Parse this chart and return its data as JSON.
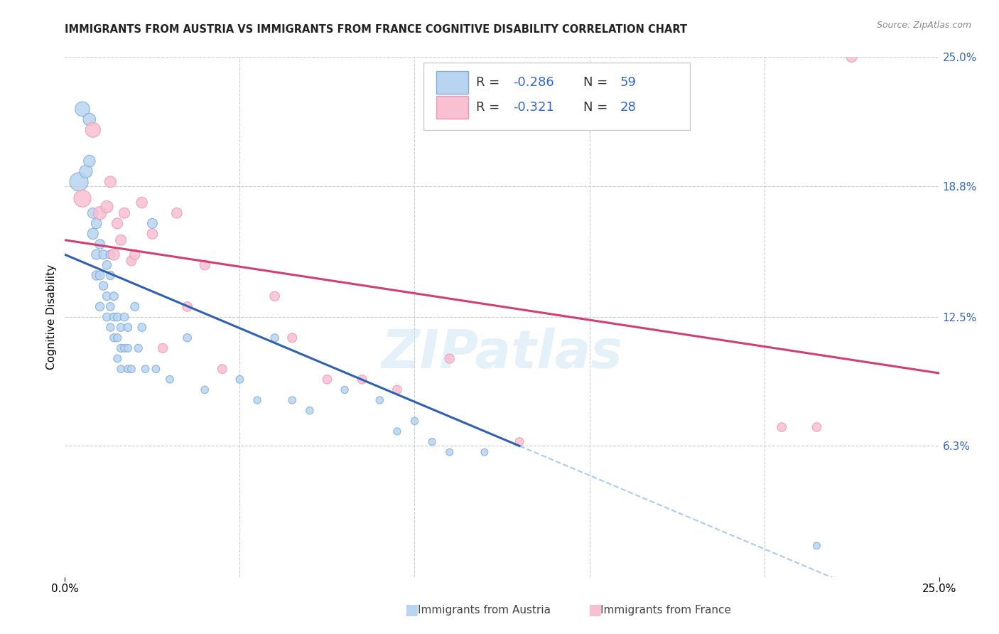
{
  "title": "IMMIGRANTS FROM AUSTRIA VS IMMIGRANTS FROM FRANCE COGNITIVE DISABILITY CORRELATION CHART",
  "source": "Source: ZipAtlas.com",
  "ylabel": "Cognitive Disability",
  "xlim": [
    0.0,
    0.25
  ],
  "ylim": [
    0.0,
    0.25
  ],
  "legend_r_austria": "-0.286",
  "legend_n_austria": "59",
  "legend_r_france": "-0.321",
  "legend_n_france": "28",
  "austria_fill": "#b8d4f0",
  "austria_edge": "#80aad8",
  "france_fill": "#f8c0d0",
  "france_edge": "#e898b8",
  "austria_line_color": "#3060b0",
  "france_line_color": "#d04070",
  "dashed_color": "#aaccee",
  "austria_reg": [
    0.0,
    0.155,
    0.13,
    0.063
  ],
  "france_reg": [
    0.0,
    0.162,
    0.25,
    0.098
  ],
  "austria_x": [
    0.004,
    0.005,
    0.006,
    0.007,
    0.007,
    0.008,
    0.008,
    0.009,
    0.009,
    0.009,
    0.01,
    0.01,
    0.01,
    0.011,
    0.011,
    0.012,
    0.012,
    0.012,
    0.013,
    0.013,
    0.013,
    0.013,
    0.014,
    0.014,
    0.014,
    0.015,
    0.015,
    0.015,
    0.016,
    0.016,
    0.016,
    0.017,
    0.017,
    0.018,
    0.018,
    0.018,
    0.019,
    0.02,
    0.021,
    0.022,
    0.023,
    0.025,
    0.026,
    0.03,
    0.035,
    0.04,
    0.05,
    0.055,
    0.06,
    0.065,
    0.07,
    0.08,
    0.09,
    0.095,
    0.1,
    0.105,
    0.11,
    0.12,
    0.215
  ],
  "austria_y": [
    0.19,
    0.225,
    0.195,
    0.22,
    0.2,
    0.165,
    0.175,
    0.17,
    0.155,
    0.145,
    0.16,
    0.145,
    0.13,
    0.155,
    0.14,
    0.15,
    0.135,
    0.125,
    0.155,
    0.145,
    0.13,
    0.12,
    0.135,
    0.125,
    0.115,
    0.125,
    0.115,
    0.105,
    0.12,
    0.11,
    0.1,
    0.125,
    0.11,
    0.12,
    0.11,
    0.1,
    0.1,
    0.13,
    0.11,
    0.12,
    0.1,
    0.17,
    0.1,
    0.095,
    0.115,
    0.09,
    0.095,
    0.085,
    0.115,
    0.085,
    0.08,
    0.09,
    0.085,
    0.07,
    0.075,
    0.065,
    0.06,
    0.06,
    0.015
  ],
  "austria_sizes": [
    350,
    220,
    170,
    160,
    140,
    120,
    110,
    110,
    100,
    90,
    95,
    85,
    80,
    85,
    80,
    80,
    75,
    70,
    80,
    75,
    70,
    65,
    72,
    68,
    64,
    70,
    65,
    60,
    68,
    63,
    58,
    70,
    62,
    68,
    62,
    57,
    60,
    75,
    65,
    70,
    58,
    100,
    60,
    58,
    68,
    58,
    60,
    55,
    65,
    55,
    55,
    55,
    55,
    52,
    55,
    50,
    50,
    50,
    50
  ],
  "france_x": [
    0.005,
    0.008,
    0.01,
    0.012,
    0.013,
    0.014,
    0.015,
    0.016,
    0.017,
    0.019,
    0.02,
    0.022,
    0.025,
    0.028,
    0.032,
    0.035,
    0.04,
    0.045,
    0.06,
    0.065,
    0.075,
    0.085,
    0.095,
    0.11,
    0.13,
    0.205,
    0.215,
    0.225
  ],
  "france_y": [
    0.182,
    0.215,
    0.175,
    0.178,
    0.19,
    0.155,
    0.17,
    0.162,
    0.175,
    0.152,
    0.155,
    0.18,
    0.165,
    0.11,
    0.175,
    0.13,
    0.15,
    0.1,
    0.135,
    0.115,
    0.095,
    0.095,
    0.09,
    0.105,
    0.065,
    0.072,
    0.072,
    0.25
  ],
  "france_sizes": [
    300,
    230,
    170,
    150,
    130,
    125,
    120,
    115,
    115,
    100,
    105,
    120,
    110,
    90,
    110,
    95,
    100,
    85,
    95,
    85,
    82,
    82,
    80,
    88,
    72,
    82,
    82,
    110
  ]
}
